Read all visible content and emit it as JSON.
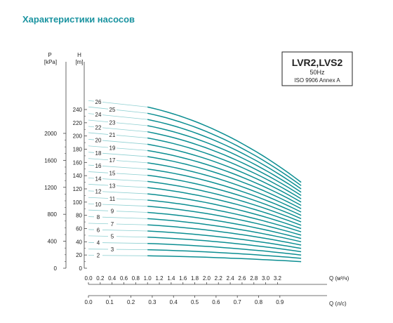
{
  "page": {
    "title": "Характеристики насосов"
  },
  "colors": {
    "curve": "#0c8e92",
    "curve_faint": "#8fd0d2",
    "title": "#1a93a0",
    "axis": "#444444"
  },
  "chart_data": {
    "type": "line",
    "title": "LVR2,LVS2",
    "subtitle_freq": "50Hz",
    "subtitle_std": "ISO 9906 Annex A",
    "y_pressure": {
      "label_top": "P",
      "label_unit": "[kPa]",
      "ticks": [
        "0",
        "400",
        "800",
        "1200",
        "1600",
        "2000"
      ],
      "tick_values": [
        0,
        400,
        800,
        1200,
        1600,
        2000
      ]
    },
    "y_head": {
      "label_top": "H",
      "label_unit": "[m]",
      "range": [
        0,
        250
      ],
      "ticks": [
        "0",
        "20",
        "40",
        "60",
        "80",
        "100",
        "120",
        "140",
        "160",
        "180",
        "200",
        "220",
        "240"
      ],
      "tick_values": [
        0,
        20,
        40,
        60,
        80,
        100,
        120,
        140,
        160,
        180,
        200,
        220,
        240
      ]
    },
    "x_flow_m3h": {
      "label": "Q (м³/ч)",
      "range": [
        0,
        3.6
      ],
      "ticks": [
        "0.0",
        "0.2",
        "0.4",
        "0.6",
        "0.8",
        "1.0",
        "1.2",
        "1.4",
        "1.6",
        "1.8",
        "2.0",
        "2.2",
        "2.4",
        "2.6",
        "2.8",
        "3.0",
        "3.2"
      ],
      "tick_values": [
        0,
        0.2,
        0.4,
        0.6,
        0.8,
        1.0,
        1.2,
        1.4,
        1.6,
        1.8,
        2.0,
        2.2,
        2.4,
        2.6,
        2.8,
        3.0,
        3.2
      ]
    },
    "x_flow_ls": {
      "label": "Q (л/с)",
      "ticks": [
        "0.0",
        "0.1",
        "0.2",
        "0.3",
        "0.4",
        "0.5",
        "0.6",
        "0.7",
        "0.8",
        "0.9"
      ],
      "tick_values": [
        0,
        0.1,
        0.2,
        0.3,
        0.4,
        0.5,
        0.6,
        0.7,
        0.8,
        0.9
      ]
    },
    "operating_range_m3h": [
      1.0,
      3.6
    ],
    "series": [
      {
        "name": "2",
        "x": [
          0,
          1.0,
          3.6
        ],
        "y": [
          19.5,
          18.8,
          10
        ]
      },
      {
        "name": "3",
        "x": [
          0,
          1.0,
          3.6
        ],
        "y": [
          29,
          28,
          15
        ]
      },
      {
        "name": "4",
        "x": [
          0,
          1.0,
          3.6
        ],
        "y": [
          39,
          37.5,
          20
        ]
      },
      {
        "name": "5",
        "x": [
          0,
          1.0,
          3.6
        ],
        "y": [
          49,
          47,
          25
        ]
      },
      {
        "name": "6",
        "x": [
          0,
          1.0,
          3.6
        ],
        "y": [
          58.5,
          56.3,
          30
        ]
      },
      {
        "name": "7",
        "x": [
          0,
          1.0,
          3.6
        ],
        "y": [
          68,
          65.6,
          35
        ]
      },
      {
        "name": "8",
        "x": [
          0,
          1.0,
          3.6
        ],
        "y": [
          78,
          75,
          40
        ]
      },
      {
        "name": "9",
        "x": [
          0,
          1.0,
          3.6
        ],
        "y": [
          88,
          84.4,
          45
        ]
      },
      {
        "name": "10",
        "x": [
          0,
          1.0,
          3.6
        ],
        "y": [
          97.5,
          93.8,
          50
        ]
      },
      {
        "name": "11",
        "x": [
          0,
          1.0,
          3.6
        ],
        "y": [
          107,
          103,
          55
        ]
      },
      {
        "name": "12",
        "x": [
          0,
          1.0,
          3.6
        ],
        "y": [
          117,
          112.5,
          60
        ]
      },
      {
        "name": "13",
        "x": [
          0,
          1.0,
          3.6
        ],
        "y": [
          127,
          122,
          65
        ]
      },
      {
        "name": "14",
        "x": [
          0,
          1.0,
          3.6
        ],
        "y": [
          136.5,
          131.3,
          70
        ]
      },
      {
        "name": "15",
        "x": [
          0,
          1.0,
          3.6
        ],
        "y": [
          146,
          140.6,
          75
        ]
      },
      {
        "name": "16",
        "x": [
          0,
          1.0,
          3.6
        ],
        "y": [
          156,
          150,
          80
        ]
      },
      {
        "name": "17",
        "x": [
          0,
          1.0,
          3.6
        ],
        "y": [
          166,
          159.4,
          85
        ]
      },
      {
        "name": "18",
        "x": [
          0,
          1.0,
          3.6
        ],
        "y": [
          175.5,
          168.8,
          90
        ]
      },
      {
        "name": "19",
        "x": [
          0,
          1.0,
          3.6
        ],
        "y": [
          185,
          178,
          95
        ]
      },
      {
        "name": "20",
        "x": [
          0,
          1.0,
          3.6
        ],
        "y": [
          195,
          187.5,
          100
        ]
      },
      {
        "name": "21",
        "x": [
          0,
          1.0,
          3.6
        ],
        "y": [
          205,
          197,
          105
        ]
      },
      {
        "name": "22",
        "x": [
          0,
          1.0,
          3.6
        ],
        "y": [
          214.5,
          206.3,
          110
        ]
      },
      {
        "name": "23",
        "x": [
          0,
          1.0,
          3.6
        ],
        "y": [
          224,
          215.6,
          115
        ]
      },
      {
        "name": "24",
        "x": [
          0,
          1.0,
          3.6
        ],
        "y": [
          234,
          225,
          120
        ]
      },
      {
        "name": "25",
        "x": [
          0,
          1.0,
          3.6
        ],
        "y": [
          244,
          234.4,
          125
        ]
      },
      {
        "name": "26",
        "x": [
          0,
          1.0,
          3.6
        ],
        "y": [
          253.5,
          243.8,
          130
        ]
      }
    ]
  }
}
